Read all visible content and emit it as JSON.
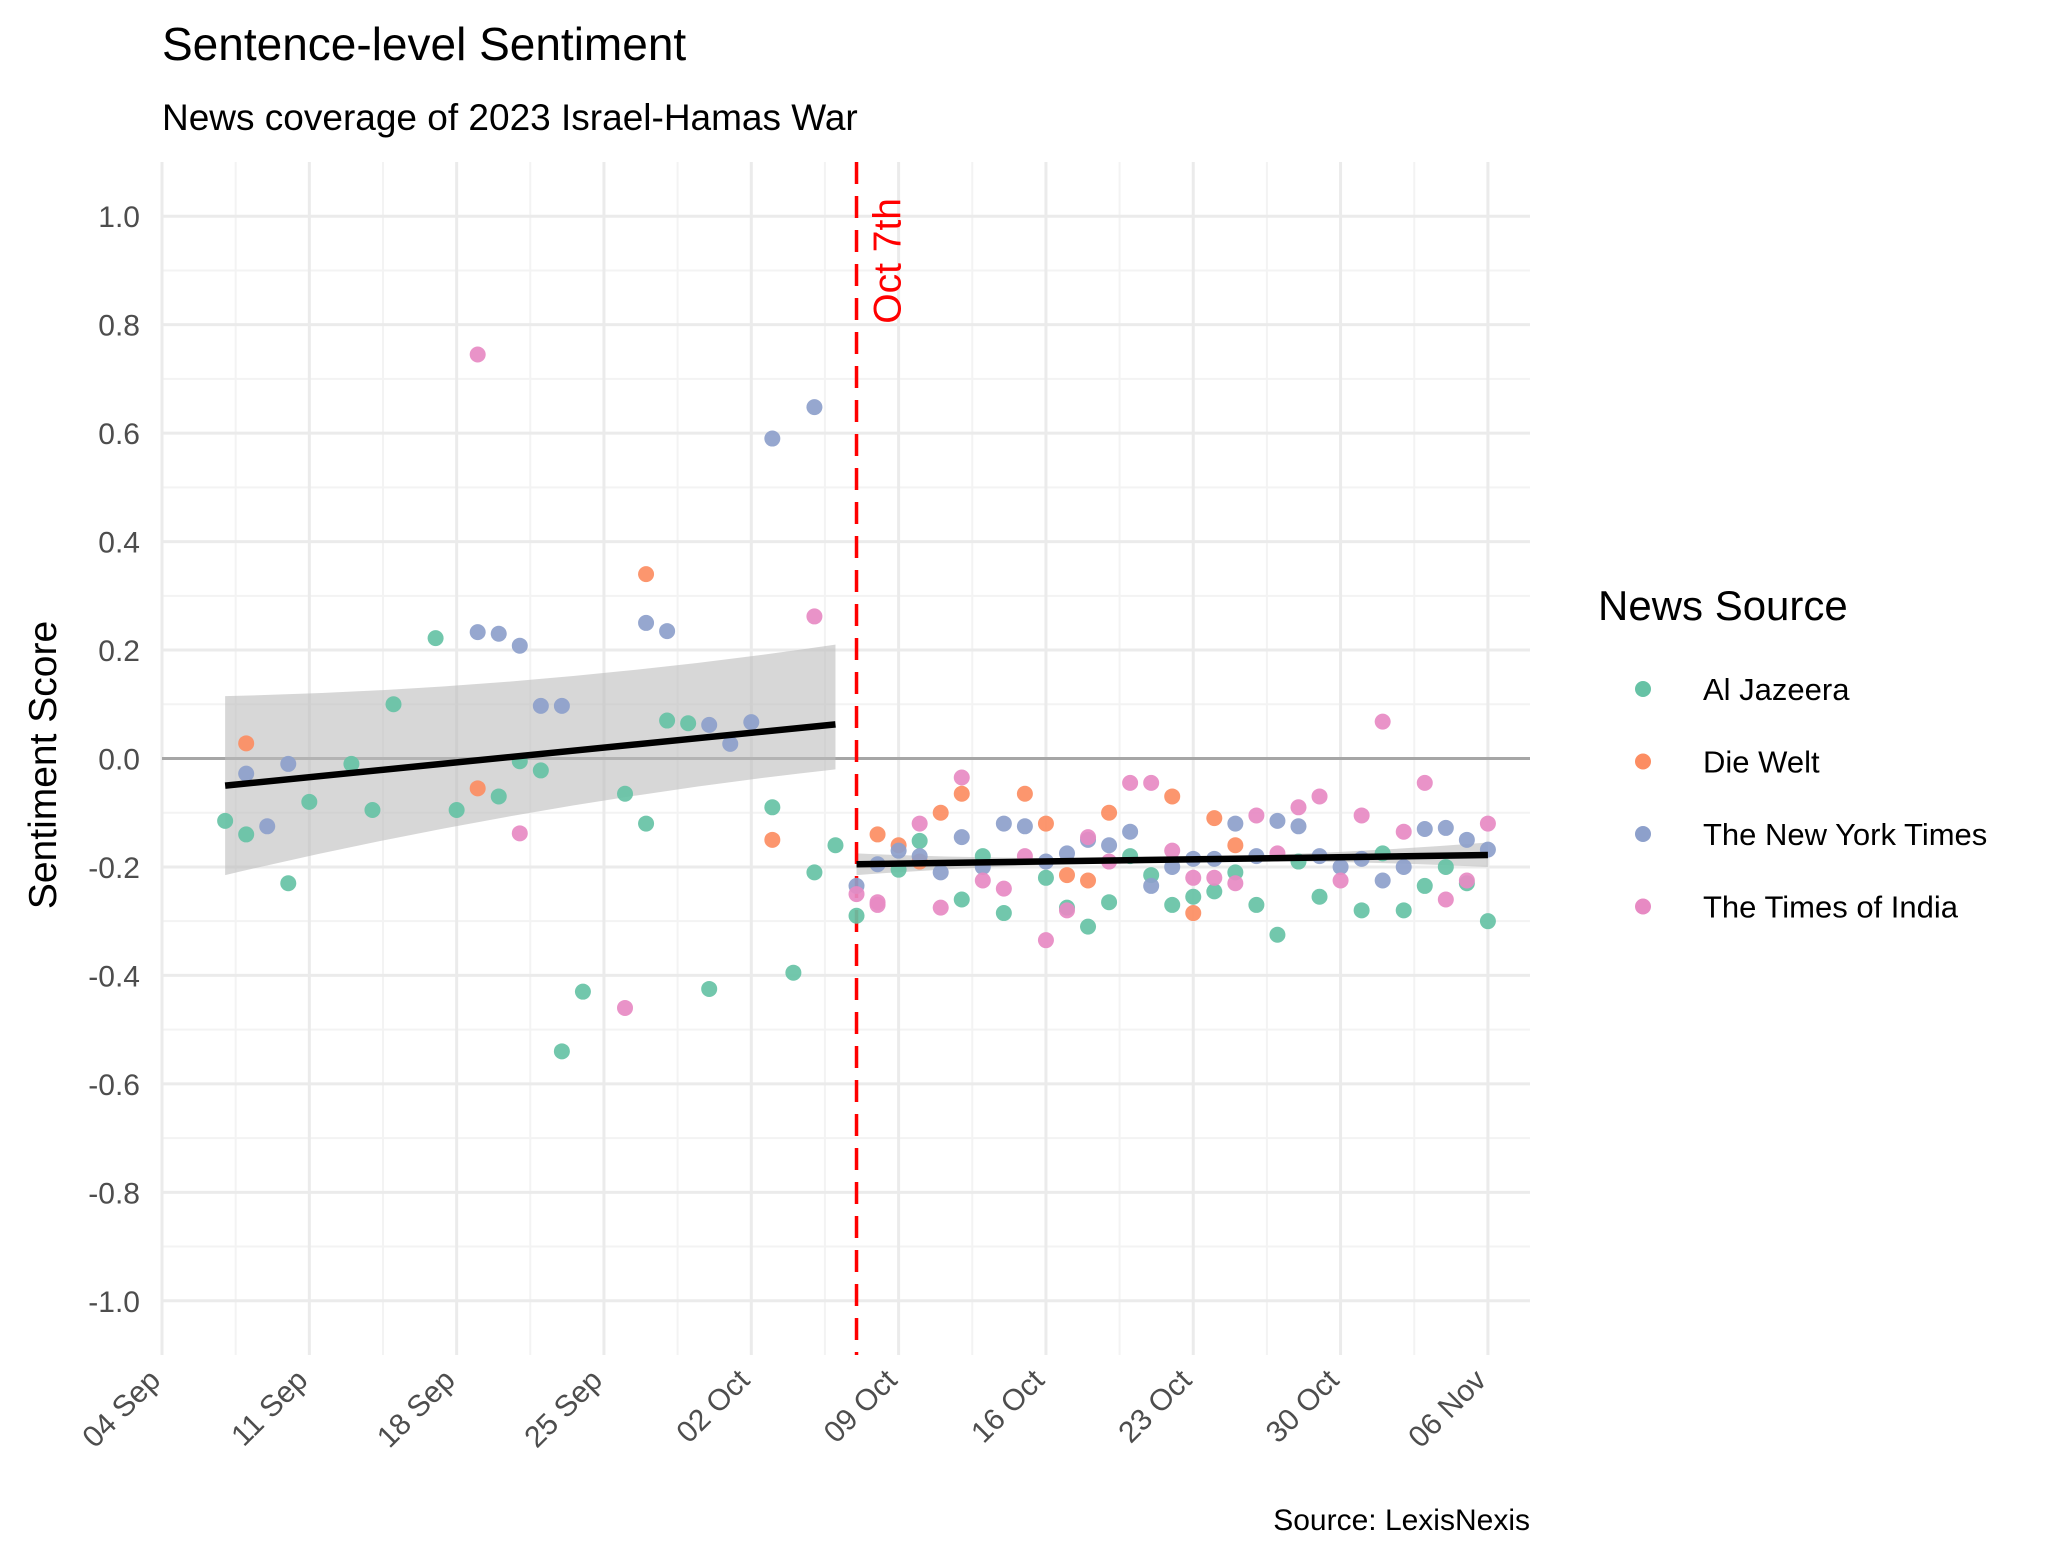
{
  "chart_data": {
    "type": "scatter",
    "title": "Sentence-level Sentiment",
    "subtitle": "News coverage of 2023 Israel-Hamas War",
    "caption": "Source: LexisNexis",
    "ylabel": "Sentiment Score",
    "xlabel": "",
    "ylim": [
      -1.1,
      1.1
    ],
    "xlim": [
      "2023-09-04",
      "2023-11-08"
    ],
    "y_ticks": [
      "1.0",
      "0.8",
      "0.6",
      "0.4",
      "0.2",
      "0.0",
      "-0.2",
      "-0.4",
      "-0.6",
      "-0.8",
      "-1.0"
    ],
    "x_ticks": [
      {
        "date": "2023-09-04",
        "label": "04 Sep"
      },
      {
        "date": "2023-09-11",
        "label": "11 Sep"
      },
      {
        "date": "2023-09-18",
        "label": "18 Sep"
      },
      {
        "date": "2023-09-25",
        "label": "25 Sep"
      },
      {
        "date": "2023-10-02",
        "label": "02 Oct"
      },
      {
        "date": "2023-10-09",
        "label": "09 Oct"
      },
      {
        "date": "2023-10-16",
        "label": "16 Oct"
      },
      {
        "date": "2023-10-23",
        "label": "23 Oct"
      },
      {
        "date": "2023-10-30",
        "label": "30 Oct"
      },
      {
        "date": "2023-11-06",
        "label": "06 Nov"
      }
    ],
    "grid": true,
    "legend": {
      "title": "News Source",
      "position": "right"
    },
    "reference_line": {
      "date": "2023-10-07",
      "label": "Oct 7th",
      "color": "#ff0000",
      "style": "dashed"
    },
    "trend_lines": [
      {
        "x": [
          "2023-09-07",
          "2023-10-06"
        ],
        "y": [
          -0.05,
          0.063
        ],
        "ci": [
          [
            -0.215,
            0.115
          ],
          [
            -0.02,
            0.21
          ]
        ]
      },
      {
        "x": [
          "2023-10-07",
          "2023-11-06"
        ],
        "y": [
          -0.195,
          -0.178
        ],
        "ci": [
          [
            -0.215,
            -0.175
          ],
          [
            -0.2,
            -0.155
          ]
        ]
      }
    ],
    "series": [
      {
        "name": "Al Jazeera",
        "color": "#66c2a5",
        "points": [
          [
            "2023-09-07",
            -0.115
          ],
          [
            "2023-09-08",
            -0.14
          ],
          [
            "2023-09-10",
            -0.23
          ],
          [
            "2023-09-11",
            -0.08
          ],
          [
            "2023-09-13",
            -0.01
          ],
          [
            "2023-09-14",
            -0.095
          ],
          [
            "2023-09-15",
            0.1
          ],
          [
            "2023-09-17",
            0.222
          ],
          [
            "2023-09-18",
            -0.095
          ],
          [
            "2023-09-20",
            -0.07
          ],
          [
            "2023-09-21",
            -0.005
          ],
          [
            "2023-09-22",
            -0.022
          ],
          [
            "2023-09-23",
            -0.54
          ],
          [
            "2023-09-24",
            -0.43
          ],
          [
            "2023-09-26",
            -0.065
          ],
          [
            "2023-09-27",
            -0.12
          ],
          [
            "2023-09-28",
            0.07
          ],
          [
            "2023-09-29",
            0.065
          ],
          [
            "2023-09-30",
            -0.425
          ],
          [
            "2023-10-03",
            -0.09
          ],
          [
            "2023-10-04",
            -0.395
          ],
          [
            "2023-10-05",
            -0.21
          ],
          [
            "2023-10-06",
            -0.16
          ],
          [
            "2023-10-07",
            -0.29
          ],
          [
            "2023-10-09",
            -0.205
          ],
          [
            "2023-10-10",
            -0.152
          ],
          [
            "2023-10-12",
            -0.26
          ],
          [
            "2023-10-13",
            -0.18
          ],
          [
            "2023-10-14",
            -0.285
          ],
          [
            "2023-10-16",
            -0.22
          ],
          [
            "2023-10-17",
            -0.275
          ],
          [
            "2023-10-18",
            -0.31
          ],
          [
            "2023-10-19",
            -0.265
          ],
          [
            "2023-10-20",
            -0.18
          ],
          [
            "2023-10-21",
            -0.215
          ],
          [
            "2023-10-22",
            -0.27
          ],
          [
            "2023-10-23",
            -0.255
          ],
          [
            "2023-10-24",
            -0.245
          ],
          [
            "2023-10-25",
            -0.21
          ],
          [
            "2023-10-26",
            -0.27
          ],
          [
            "2023-10-27",
            -0.325
          ],
          [
            "2023-10-28",
            -0.19
          ],
          [
            "2023-10-29",
            -0.255
          ],
          [
            "2023-10-31",
            -0.28
          ],
          [
            "2023-11-01",
            -0.175
          ],
          [
            "2023-11-02",
            -0.28
          ],
          [
            "2023-11-03",
            -0.235
          ],
          [
            "2023-11-04",
            -0.2
          ],
          [
            "2023-11-05",
            -0.23
          ],
          [
            "2023-11-06",
            -0.3
          ]
        ]
      },
      {
        "name": "Die Welt",
        "color": "#fc8d62",
        "points": [
          [
            "2023-09-08",
            0.028
          ],
          [
            "2023-09-19",
            -0.055
          ],
          [
            "2023-09-27",
            0.34
          ],
          [
            "2023-10-03",
            -0.15
          ],
          [
            "2023-10-08",
            -0.14
          ],
          [
            "2023-10-09",
            -0.16
          ],
          [
            "2023-10-10",
            -0.19
          ],
          [
            "2023-10-11",
            -0.1
          ],
          [
            "2023-10-12",
            -0.065
          ],
          [
            "2023-10-15",
            -0.065
          ],
          [
            "2023-10-16",
            -0.12
          ],
          [
            "2023-10-17",
            -0.215
          ],
          [
            "2023-10-18",
            -0.225
          ],
          [
            "2023-10-19",
            -0.1
          ],
          [
            "2023-10-22",
            -0.07
          ],
          [
            "2023-10-23",
            -0.285
          ],
          [
            "2023-10-24",
            -0.11
          ],
          [
            "2023-10-25",
            -0.16
          ]
        ]
      },
      {
        "name": "The New York Times",
        "color": "#8da0cb",
        "points": [
          [
            "2023-09-08",
            -0.028
          ],
          [
            "2023-09-09",
            -0.125
          ],
          [
            "2023-09-10",
            -0.01
          ],
          [
            "2023-09-19",
            0.233
          ],
          [
            "2023-09-20",
            0.23
          ],
          [
            "2023-09-21",
            0.208
          ],
          [
            "2023-09-22",
            0.097
          ],
          [
            "2023-09-23",
            0.097
          ],
          [
            "2023-09-27",
            0.25
          ],
          [
            "2023-09-28",
            0.235
          ],
          [
            "2023-09-30",
            0.062
          ],
          [
            "2023-10-01",
            0.027
          ],
          [
            "2023-10-02",
            0.067
          ],
          [
            "2023-10-03",
            0.59
          ],
          [
            "2023-10-05",
            0.648
          ],
          [
            "2023-10-07",
            -0.235
          ],
          [
            "2023-10-08",
            -0.195
          ],
          [
            "2023-10-09",
            -0.17
          ],
          [
            "2023-10-10",
            -0.18
          ],
          [
            "2023-10-11",
            -0.21
          ],
          [
            "2023-10-12",
            -0.145
          ],
          [
            "2023-10-13",
            -0.2
          ],
          [
            "2023-10-14",
            -0.12
          ],
          [
            "2023-10-15",
            -0.125
          ],
          [
            "2023-10-16",
            -0.19
          ],
          [
            "2023-10-17",
            -0.175
          ],
          [
            "2023-10-18",
            -0.15
          ],
          [
            "2023-10-19",
            -0.16
          ],
          [
            "2023-10-20",
            -0.135
          ],
          [
            "2023-10-21",
            -0.235
          ],
          [
            "2023-10-22",
            -0.2
          ],
          [
            "2023-10-23",
            -0.185
          ],
          [
            "2023-10-24",
            -0.185
          ],
          [
            "2023-10-25",
            -0.12
          ],
          [
            "2023-10-26",
            -0.18
          ],
          [
            "2023-10-27",
            -0.115
          ],
          [
            "2023-10-28",
            -0.125
          ],
          [
            "2023-10-29",
            -0.18
          ],
          [
            "2023-10-30",
            -0.2
          ],
          [
            "2023-10-31",
            -0.185
          ],
          [
            "2023-11-01",
            -0.225
          ],
          [
            "2023-11-02",
            -0.2
          ],
          [
            "2023-11-03",
            -0.13
          ],
          [
            "2023-11-04",
            -0.128
          ],
          [
            "2023-11-05",
            -0.15
          ],
          [
            "2023-11-06",
            -0.168
          ]
        ]
      },
      {
        "name": "The Times of India",
        "color": "#e78ac3",
        "points": [
          [
            "2023-09-19",
            0.745
          ],
          [
            "2023-09-21",
            -0.138
          ],
          [
            "2023-09-26",
            -0.46
          ],
          [
            "2023-10-05",
            0.262
          ],
          [
            "2023-10-07",
            -0.25
          ],
          [
            "2023-10-08",
            -0.27
          ],
          [
            "2023-10-08",
            -0.265
          ],
          [
            "2023-10-10",
            -0.12
          ],
          [
            "2023-10-11",
            -0.275
          ],
          [
            "2023-10-12",
            -0.035
          ],
          [
            "2023-10-13",
            -0.225
          ],
          [
            "2023-10-14",
            -0.24
          ],
          [
            "2023-10-15",
            -0.18
          ],
          [
            "2023-10-16",
            -0.335
          ],
          [
            "2023-10-17",
            -0.28
          ],
          [
            "2023-10-18",
            -0.145
          ],
          [
            "2023-10-19",
            -0.19
          ],
          [
            "2023-10-20",
            -0.045
          ],
          [
            "2023-10-21",
            -0.045
          ],
          [
            "2023-10-22",
            -0.17
          ],
          [
            "2023-10-23",
            -0.22
          ],
          [
            "2023-10-24",
            -0.22
          ],
          [
            "2023-10-25",
            -0.23
          ],
          [
            "2023-10-26",
            -0.105
          ],
          [
            "2023-10-27",
            -0.175
          ],
          [
            "2023-10-28",
            -0.09
          ],
          [
            "2023-10-29",
            -0.07
          ],
          [
            "2023-10-30",
            -0.225
          ],
          [
            "2023-10-31",
            -0.105
          ],
          [
            "2023-11-01",
            0.068
          ],
          [
            "2023-11-02",
            -0.135
          ],
          [
            "2023-11-03",
            -0.045
          ],
          [
            "2023-11-04",
            -0.26
          ],
          [
            "2023-11-05",
            -0.225
          ],
          [
            "2023-11-06",
            -0.12
          ]
        ]
      }
    ]
  }
}
